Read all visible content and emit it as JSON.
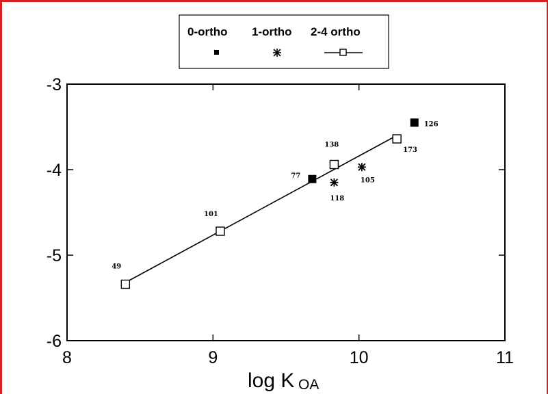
{
  "chart_data": {
    "type": "scatter",
    "title": "",
    "xlabel_main": "log K",
    "xlabel_sub": "OA",
    "ylabel": "",
    "xlim": [
      8,
      11
    ],
    "ylim": [
      -6,
      -3
    ],
    "x_ticks": [
      "8",
      "9",
      "10",
      "11"
    ],
    "y_ticks": [
      "-3",
      "-4",
      "-5",
      "-6"
    ],
    "grid": false,
    "legend_position": "top-center",
    "legend": [
      {
        "label": "0-ortho",
        "marker": "filled-square"
      },
      {
        "label": "1-ortho",
        "marker": "asterisk"
      },
      {
        "label": "2-4 ortho",
        "marker": "open-square-line"
      }
    ],
    "series": [
      {
        "name": "0-ortho",
        "marker": "filled-square",
        "points": [
          {
            "x": 9.68,
            "y": -4.11,
            "label": "77"
          },
          {
            "x": 10.38,
            "y": -3.45,
            "label": "126"
          }
        ]
      },
      {
        "name": "1-ortho",
        "marker": "asterisk",
        "points": [
          {
            "x": 9.83,
            "y": -4.15,
            "label": "118"
          },
          {
            "x": 10.02,
            "y": -3.97,
            "label": "105"
          }
        ]
      },
      {
        "name": "2-4 ortho",
        "marker": "open-square-line",
        "points": [
          {
            "x": 8.4,
            "y": -5.34,
            "label": "49"
          },
          {
            "x": 9.05,
            "y": -4.72,
            "label": "101"
          },
          {
            "x": 9.83,
            "y": -3.94,
            "label": "138"
          },
          {
            "x": 10.26,
            "y": -3.64,
            "label": "173"
          }
        ],
        "regression_line": {
          "x": [
            8.4,
            10.26
          ],
          "y": [
            -5.32,
            -3.6
          ]
        }
      }
    ]
  },
  "colors": {
    "frame": "#d42020",
    "ink": "#000000"
  }
}
